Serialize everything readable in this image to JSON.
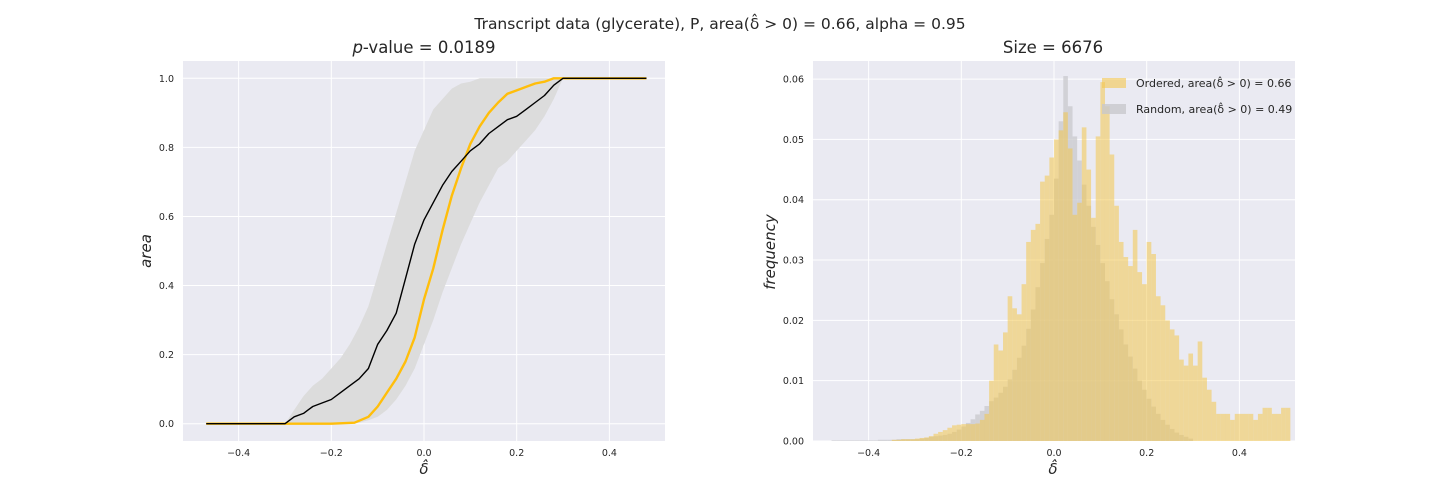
{
  "figure": {
    "suptitle": "Transcript data (glycerate), P, area(δ̂ > 0) = 0.66, alpha = 0.95"
  },
  "colors": {
    "axes_bg": "#EAEAF2",
    "grid": "#FFFFFF",
    "ordered": "#FFBE0B",
    "random_line": "#000000",
    "band": "#DCDCDC",
    "ordered_hist": "#F3C64E",
    "random_hist": "#C8C8CC"
  },
  "chart_data": [
    {
      "type": "line",
      "title": "p-value = 0.0189",
      "xlabel": "δ̂",
      "ylabel": "area",
      "xlim": [
        -0.52,
        0.52
      ],
      "ylim": [
        -0.05,
        1.05
      ],
      "xticks": [
        -0.4,
        -0.2,
        0.0,
        0.2,
        0.4
      ],
      "xtick_labels": [
        "−0.4",
        "−0.2",
        "0.0",
        "0.2",
        "0.4"
      ],
      "yticks": [
        0.0,
        0.2,
        0.4,
        0.6,
        0.8,
        1.0
      ],
      "ytick_labels": [
        "0.0",
        "0.2",
        "0.4",
        "0.6",
        "0.8",
        "1.0"
      ],
      "grid": true,
      "series": [
        {
          "kind": "line",
          "x": [
            -0.47,
            -0.3,
            -0.28,
            -0.26,
            -0.25,
            -0.24,
            -0.22,
            -0.2,
            -0.18,
            -0.16,
            -0.14,
            -0.12,
            -0.1,
            -0.08,
            -0.06,
            -0.04,
            -0.02,
            0.0,
            0.02,
            0.04,
            0.06,
            0.08,
            0.1,
            0.12,
            0.14,
            0.16,
            0.18,
            0.2,
            0.22,
            0.24,
            0.26,
            0.28,
            0.3,
            0.48
          ],
          "y": [
            0.0,
            0.0,
            0.02,
            0.03,
            0.04,
            0.05,
            0.06,
            0.07,
            0.09,
            0.11,
            0.13,
            0.16,
            0.23,
            0.27,
            0.32,
            0.42,
            0.52,
            0.59,
            0.64,
            0.69,
            0.73,
            0.76,
            0.79,
            0.81,
            0.84,
            0.86,
            0.88,
            0.89,
            0.91,
            0.93,
            0.95,
            0.98,
            1.0,
            1.0
          ]
        },
        {
          "kind": "line",
          "x": [
            -0.47,
            -0.3,
            -0.2,
            -0.15,
            -0.12,
            -0.1,
            -0.08,
            -0.06,
            -0.04,
            -0.02,
            0.0,
            0.02,
            0.04,
            0.06,
            0.08,
            0.1,
            0.12,
            0.14,
            0.16,
            0.18,
            0.2,
            0.22,
            0.24,
            0.26,
            0.28,
            0.3,
            0.48
          ],
          "y": [
            0.0,
            0.0,
            0.0,
            0.003,
            0.02,
            0.05,
            0.09,
            0.13,
            0.18,
            0.25,
            0.36,
            0.45,
            0.56,
            0.66,
            0.74,
            0.81,
            0.86,
            0.9,
            0.93,
            0.955,
            0.965,
            0.975,
            0.985,
            0.99,
            1.0,
            1.0,
            1.0
          ]
        }
      ],
      "band": {
        "x": [
          -0.47,
          -0.3,
          -0.28,
          -0.26,
          -0.24,
          -0.22,
          -0.2,
          -0.18,
          -0.16,
          -0.14,
          -0.12,
          -0.1,
          -0.08,
          -0.06,
          -0.04,
          -0.02,
          0.0,
          0.02,
          0.04,
          0.06,
          0.08,
          0.1,
          0.12,
          0.14,
          0.16,
          0.18,
          0.2,
          0.22,
          0.24,
          0.26,
          0.28,
          0.3,
          0.48
        ],
        "upper": [
          0.0,
          0.0,
          0.04,
          0.08,
          0.11,
          0.13,
          0.16,
          0.19,
          0.23,
          0.28,
          0.34,
          0.43,
          0.52,
          0.61,
          0.7,
          0.79,
          0.85,
          0.91,
          0.94,
          0.97,
          0.985,
          0.99,
          1.0,
          1.0,
          1.0,
          1.0,
          1.0,
          1.0,
          1.0,
          1.0,
          1.0,
          1.0,
          1.0
        ],
        "lower": [
          0.0,
          0.0,
          0.0,
          0.0,
          0.0,
          0.0,
          0.0,
          0.0,
          0.0,
          0.003,
          0.01,
          0.02,
          0.04,
          0.07,
          0.11,
          0.16,
          0.23,
          0.3,
          0.38,
          0.45,
          0.52,
          0.58,
          0.64,
          0.69,
          0.74,
          0.76,
          0.79,
          0.82,
          0.85,
          0.89,
          0.94,
          1.0,
          1.0
        ]
      }
    },
    {
      "type": "bar",
      "title": "Size = 6676",
      "xlabel": "δ̂",
      "ylabel": "frequency",
      "xlim": [
        -0.52,
        0.52
      ],
      "ylim": [
        0.0,
        0.063
      ],
      "xticks": [
        -0.4,
        -0.2,
        0.0,
        0.2,
        0.4
      ],
      "xtick_labels": [
        "−0.4",
        "−0.2",
        "0.0",
        "0.2",
        "0.4"
      ],
      "yticks": [
        0.0,
        0.01,
        0.02,
        0.03,
        0.04,
        0.05,
        0.06
      ],
      "ytick_labels": [
        "0.00",
        "0.01",
        "0.02",
        "0.03",
        "0.04",
        "0.05",
        "0.06"
      ],
      "grid": true,
      "legend": {
        "position": "top-right"
      },
      "series": [
        {
          "name": "Random, area(δ̂ > 0) = 0.49",
          "bin_width": 0.01,
          "bin_start": -0.48,
          "values": [
            0.0001,
            0.0001,
            0.0001,
            0.0001,
            0.0001,
            0.0001,
            0.0001,
            0.0001,
            0.0001,
            0.0001,
            0.0002,
            0.0002,
            0.0002,
            0.0002,
            0.0003,
            0.0003,
            0.0003,
            0.0003,
            0.0003,
            0.0004,
            0.0005,
            0.0007,
            0.0008,
            0.0009,
            0.001,
            0.0012,
            0.0015,
            0.0019,
            0.0024,
            0.003,
            0.0036,
            0.0044,
            0.005,
            0.0058,
            0.0066,
            0.0072,
            0.008,
            0.009,
            0.0102,
            0.0118,
            0.0138,
            0.0158,
            0.0186,
            0.0218,
            0.0255,
            0.0295,
            0.0335,
            0.0375,
            0.0435,
            0.053,
            0.0605,
            0.0555,
            0.0505,
            0.0465,
            0.0425,
            0.039,
            0.0355,
            0.0325,
            0.0295,
            0.0265,
            0.0235,
            0.021,
            0.0185,
            0.016,
            0.014,
            0.012,
            0.01,
            0.0085,
            0.007,
            0.0057,
            0.0045,
            0.0035,
            0.0027,
            0.002,
            0.0014,
            0.001,
            0.0007,
            0.0004
          ]
        },
        {
          "name": "Ordered, area(δ̂ > 0) = 0.66",
          "bin_width": 0.01,
          "bin_start": -0.35,
          "values": [
            0.0002,
            0.0002,
            0.0003,
            0.0003,
            0.0003,
            0.0004,
            0.0005,
            0.0006,
            0.0008,
            0.0012,
            0.0015,
            0.0018,
            0.0022,
            0.0026,
            0.0027,
            0.0028,
            0.0028,
            0.0028,
            0.0029,
            0.0035,
            0.0045,
            0.01,
            0.016,
            0.015,
            0.018,
            0.024,
            0.022,
            0.021,
            0.026,
            0.033,
            0.035,
            0.036,
            0.043,
            0.044,
            0.047,
            0.05,
            0.0515,
            0.0545,
            0.0485,
            0.0375,
            0.0395,
            0.052,
            0.045,
            0.037,
            0.0505,
            0.0595,
            0.0555,
            0.0475,
            0.039,
            0.033,
            0.0305,
            0.029,
            0.035,
            0.028,
            0.026,
            0.033,
            0.031,
            0.024,
            0.0225,
            0.02,
            0.0185,
            0.0175,
            0.0135,
            0.0125,
            0.0145,
            0.0125,
            0.0165,
            0.0105,
            0.0085,
            0.0065,
            0.0045,
            0.0045,
            0.0045,
            0.0035,
            0.0045,
            0.0045,
            0.0045,
            0.0045,
            0.0035,
            0.0045,
            0.0055,
            0.0055,
            0.0045,
            0.0045,
            0.0055,
            0.0055
          ]
        }
      ]
    }
  ]
}
